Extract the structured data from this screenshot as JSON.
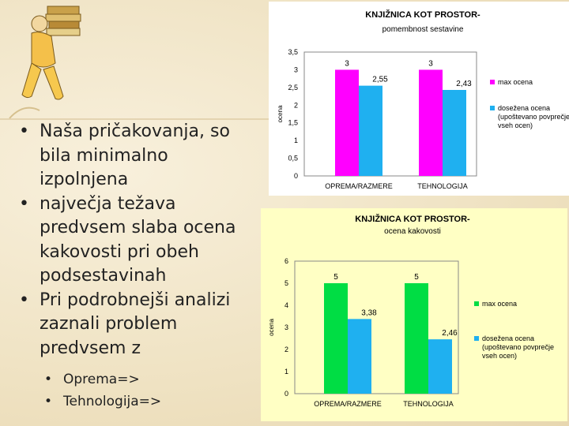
{
  "bullets": [
    "Naša pričakovanja, so bila minimalno izpolnjena",
    "največja težava predvsem slaba ocena kakovosti pri obeh podsestavinah",
    "Pri podrobnejši analizi zaznali problem predvsem z"
  ],
  "sub_bullets": [
    "Oprema=>",
    "Tehnologija=>"
  ],
  "colors": {
    "magenta": "#ff00ff",
    "cyan": "#1fb0f0",
    "green": "#00dd44",
    "chart_bg1": "#ffffff",
    "chart_bg2": "#ffffc4"
  },
  "chart_data": [
    {
      "type": "bar",
      "title": "KNJIŽNICA KOT PROSTOR-",
      "subtitle": "pomembnost sestavine",
      "ylabel": "ocena",
      "xlabel": "",
      "categories": [
        "OPREMA/RAZMERE",
        "TEHNOLOGIJA"
      ],
      "ylim": [
        0,
        3.5
      ],
      "yticks": [
        "0",
        "0,5",
        "1",
        "1,5",
        "2",
        "2,5",
        "3",
        "3,5"
      ],
      "series": [
        {
          "name": "max ocena",
          "values": [
            3,
            3
          ],
          "labels": [
            "3",
            "3"
          ]
        },
        {
          "name": "dosežena ocena (upoštevano povprečje vseh ocen)",
          "values": [
            2.55,
            2.43
          ],
          "labels": [
            "2,55",
            "2,43"
          ]
        }
      ],
      "grid": false,
      "legend": "right"
    },
    {
      "type": "bar",
      "title": "KNJIŽNICA KOT PROSTOR-",
      "subtitle": "ocena kakovosti",
      "ylabel": "ocena",
      "xlabel": "",
      "categories": [
        "OPREMA/RAZMERE",
        "TEHNOLOGIJA"
      ],
      "ylim": [
        0,
        6
      ],
      "yticks": [
        "0",
        "1",
        "2",
        "3",
        "4",
        "5",
        "6"
      ],
      "series": [
        {
          "name": "max ocena",
          "values": [
            5,
            5
          ],
          "labels": [
            "5",
            "5"
          ]
        },
        {
          "name": "dosežena ocena (upoštevano povprečje vseh ocen)",
          "values": [
            3.38,
            2.46
          ],
          "labels": [
            "3,38",
            "2,46"
          ]
        }
      ],
      "grid": false,
      "legend": "right"
    }
  ]
}
